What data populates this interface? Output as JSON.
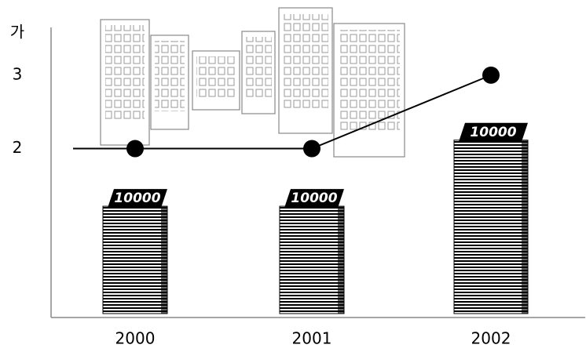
{
  "chart_data": {
    "type": "line",
    "y_label": "가",
    "categories": [
      "2000",
      "2001",
      "2002"
    ],
    "series": [
      {
        "type": "line",
        "color": "#000000",
        "values": [
          2,
          2,
          3
        ]
      },
      {
        "type": "stack",
        "color": "#000000",
        "values": [
          1.45,
          1.45,
          2.35
        ],
        "stack_label": "10000"
      }
    ],
    "ylim": [
      -0.3,
      3.65
    ],
    "yticks": [
      2,
      3
    ]
  }
}
